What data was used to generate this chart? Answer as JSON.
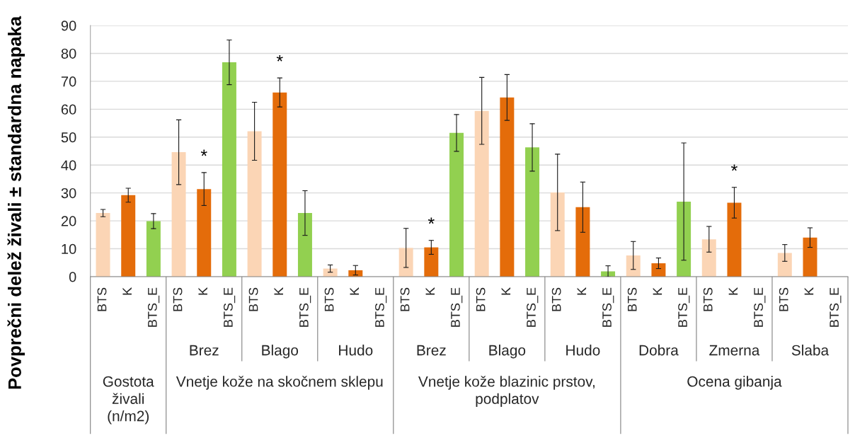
{
  "chart_data": {
    "type": "bar",
    "ylabel": "Povprečni delež živali ± standardna napaka",
    "categories": [
      null,
      "Brez",
      "Blago",
      "Hudo",
      "Brez",
      "Blago",
      "Hudo",
      "Dobra",
      "Zmerna",
      "Slaba"
    ],
    "series": [
      {
        "name": "BTS",
        "color": "#fbd5b5",
        "values": [
          22.8,
          44.6,
          52.1,
          2.9,
          10.3,
          59.4,
          30.2,
          7.6,
          13.4,
          8.5
        ],
        "errors": [
          1.3,
          11.6,
          10.4,
          1.3,
          7.0,
          12.0,
          13.7,
          5.0,
          4.6,
          3.0
        ]
      },
      {
        "name": "K",
        "color": "#e46c0a",
        "values": [
          29.2,
          31.4,
          66.0,
          2.3,
          10.5,
          64.2,
          24.9,
          4.8,
          26.5,
          14.0
        ],
        "errors": [
          2.5,
          5.9,
          5.2,
          1.7,
          2.5,
          8.2,
          9.0,
          1.9,
          5.5,
          3.5
        ],
        "value_labels": [
          null,
          "*",
          "*",
          null,
          "*",
          null,
          null,
          null,
          "*",
          null
        ]
      },
      {
        "name": "BTS_E",
        "color": "#92d050",
        "values": [
          19.9,
          76.8,
          22.8,
          null,
          51.5,
          46.3,
          1.9,
          26.9,
          null,
          null
        ],
        "errors": [
          2.7,
          8.0,
          8.0,
          null,
          6.6,
          8.5,
          2.0,
          21.0,
          null,
          null
        ]
      }
    ],
    "ylim": [
      0,
      90
    ],
    "yticks": [
      0,
      10,
      20,
      30,
      40,
      50,
      60,
      70,
      80,
      90
    ],
    "grid": "y",
    "annotations": [
      "Gostota živali (n/m2)",
      "Vnetje kože na skočnem sklepu",
      "Vnetje kože blazinic prstov, podplatov",
      "Ocena gibanja"
    ]
  }
}
